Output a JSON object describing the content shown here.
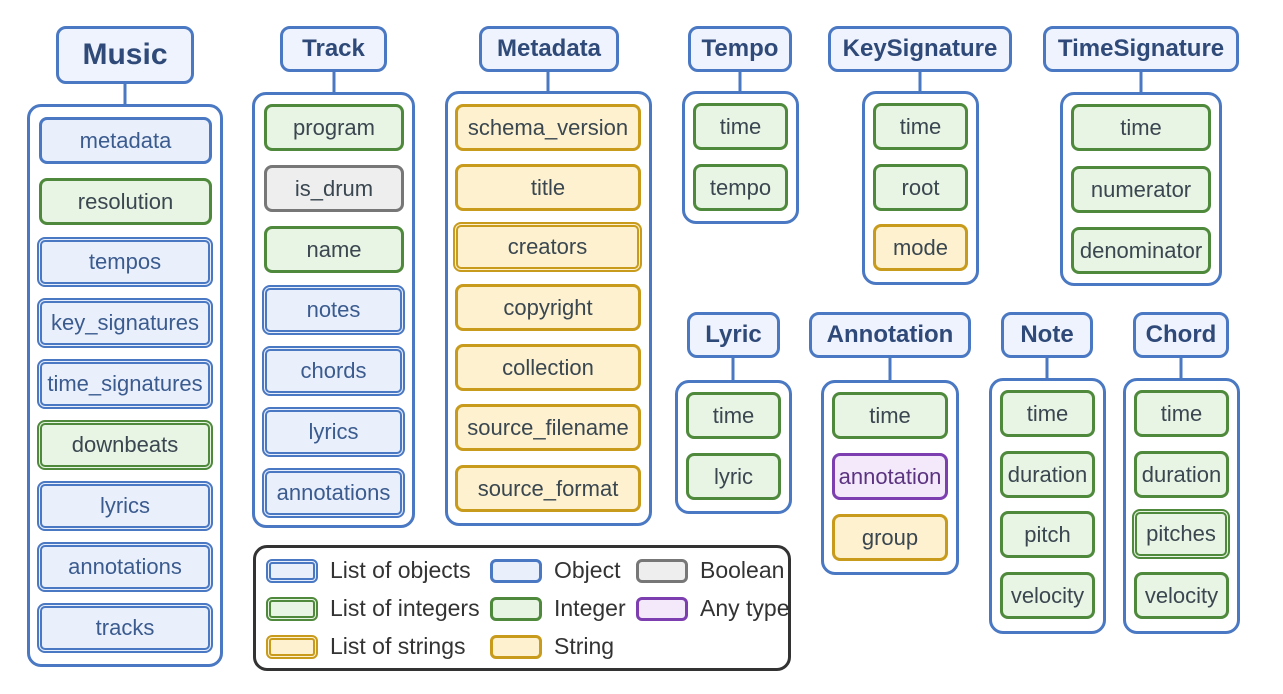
{
  "schemas": {
    "music": {
      "title": "Music",
      "fields": [
        "metadata",
        "resolution",
        "tempos",
        "key_signatures",
        "time_signatures",
        "downbeats",
        "lyrics",
        "annotations",
        "tracks"
      ]
    },
    "track": {
      "title": "Track",
      "fields": [
        "program",
        "is_drum",
        "name",
        "notes",
        "chords",
        "lyrics",
        "annotations"
      ]
    },
    "metadata": {
      "title": "Metadata",
      "fields": [
        "schema_version",
        "title",
        "creators",
        "copyright",
        "collection",
        "source_filename",
        "source_format"
      ]
    },
    "tempo": {
      "title": "Tempo",
      "fields": [
        "time",
        "tempo"
      ]
    },
    "key_signature": {
      "title": "KeySignature",
      "fields": [
        "time",
        "root",
        "mode"
      ]
    },
    "time_signature": {
      "title": "TimeSignature",
      "fields": [
        "time",
        "numerator",
        "denominator"
      ]
    },
    "lyric": {
      "title": "Lyric",
      "fields": [
        "time",
        "lyric"
      ]
    },
    "annotation": {
      "title": "Annotation",
      "fields": [
        "time",
        "annotation",
        "group"
      ]
    },
    "note": {
      "title": "Note",
      "fields": [
        "time",
        "duration",
        "pitch",
        "velocity"
      ]
    },
    "chord": {
      "title": "Chord",
      "fields": [
        "time",
        "duration",
        "pitches",
        "velocity"
      ]
    }
  },
  "legend": {
    "list_of_objects": "List of objects",
    "object": "Object",
    "boolean": "Boolean",
    "list_of_integers": "List of integers",
    "integer": "Integer",
    "any_type": "Any type",
    "list_of_strings": "List of strings",
    "string": "String"
  },
  "colors": {
    "object": "#4a78c2",
    "integer": "#4f8a3c",
    "string": "#c89b1c",
    "boolean": "#777777",
    "any": "#7d3fb0"
  }
}
